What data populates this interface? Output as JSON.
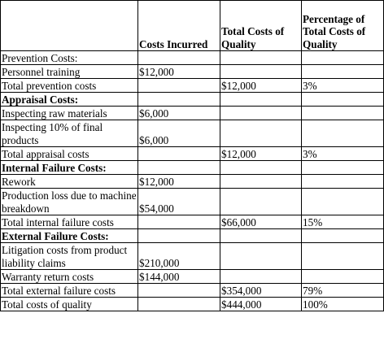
{
  "header": {
    "costs_incurred": "Costs Incurred",
    "total_costs_of_quality": "Total Costs of Quality",
    "percentage_of_total": "Percentage of Total Costs of Quality"
  },
  "rows": [
    {
      "label": "Prevention Costs:",
      "incurred": "",
      "total": "",
      "pct": "",
      "bold": false,
      "tall": false
    },
    {
      "label": "Personnel training",
      "incurred": "$12,000",
      "total": "",
      "pct": "",
      "bold": false,
      "tall": false
    },
    {
      "label": "Total prevention costs",
      "incurred": "",
      "total": "$12,000",
      "pct": "3%",
      "bold": false,
      "tall": false
    },
    {
      "label": "Appraisal Costs:",
      "incurred": "",
      "total": "",
      "pct": "",
      "bold": true,
      "tall": false
    },
    {
      "label": "Inspecting raw materials",
      "incurred": "$6,000",
      "total": "",
      "pct": "",
      "bold": false,
      "tall": false
    },
    {
      "label": "Inspecting 10% of final products",
      "incurred": "$6,000",
      "total": "",
      "pct": "",
      "bold": false,
      "tall": true
    },
    {
      "label": "Total appraisal costs",
      "incurred": "",
      "total": "$12,000",
      "pct": "3%",
      "bold": false,
      "tall": false
    },
    {
      "label": "Internal Failure Costs:",
      "incurred": "",
      "total": "",
      "pct": "",
      "bold": true,
      "tall": false
    },
    {
      "label": "Rework",
      "incurred": "$12,000",
      "total": "",
      "pct": "",
      "bold": false,
      "tall": false
    },
    {
      "label": "Production loss due to machine breakdown",
      "incurred": "$54,000",
      "total": "",
      "pct": "",
      "bold": false,
      "tall": true
    },
    {
      "label": "Total internal failure costs",
      "incurred": "",
      "total": "$66,000",
      "pct": "15%",
      "bold": false,
      "tall": false
    },
    {
      "label": "External Failure Costs:",
      "incurred": "",
      "total": "",
      "pct": "",
      "bold": true,
      "tall": false
    },
    {
      "label": "Litigation costs from product liability claims",
      "incurred": "$210,000",
      "total": "",
      "pct": "",
      "bold": false,
      "tall": true
    },
    {
      "label": "Warranty return costs",
      "incurred": "$144,000",
      "total": "",
      "pct": "",
      "bold": false,
      "tall": false
    },
    {
      "label": "Total external failure costs",
      "incurred": "",
      "total": "$354,000",
      "pct": "79%",
      "bold": false,
      "tall": false
    },
    {
      "label": "Total costs of quality",
      "incurred": "",
      "total": "$444,000",
      "pct": "100%",
      "bold": false,
      "tall": false
    }
  ]
}
